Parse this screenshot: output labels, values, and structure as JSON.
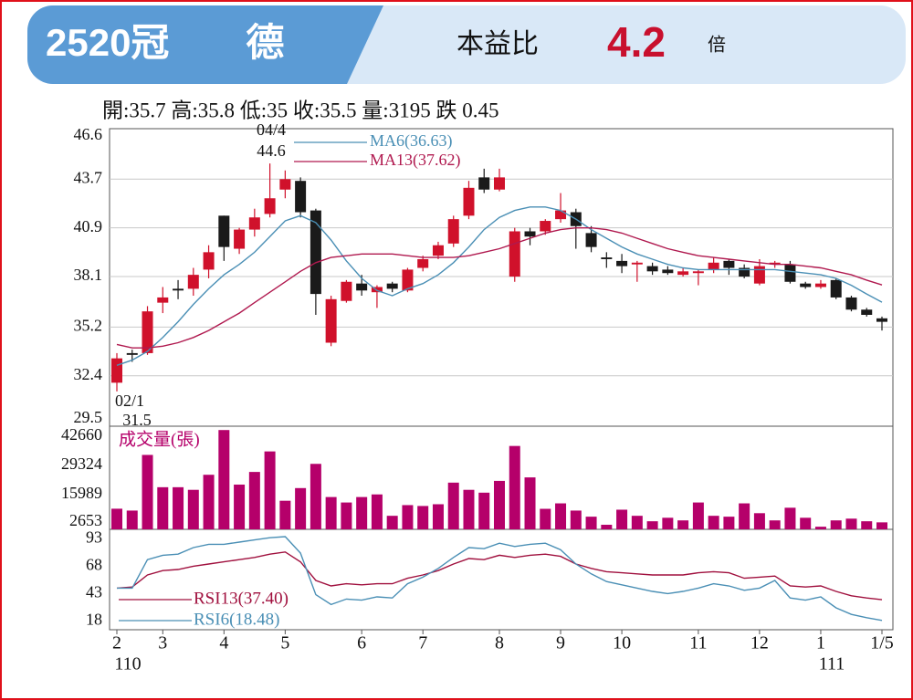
{
  "header": {
    "title": "2520冠　　德",
    "pe_label": "本益比",
    "pe_value": 4.2,
    "pe_unit": "倍",
    "info": "開:35.7 高:35.8 低:35 收:35.5 量:3195 跌 0.45"
  },
  "chart_data": [
    {
      "type": "candlestick",
      "up_color": "#d0112b",
      "down_color": "#1a1a1a",
      "open": [
        32.0,
        33.7,
        33.7,
        36.6,
        37.4,
        37.4,
        38.5,
        41.6,
        39.7,
        40.8,
        41.7,
        43.1,
        43.6,
        41.9,
        34.3,
        36.7,
        37.7,
        37.2,
        37.7,
        37.3,
        38.6,
        39.3,
        40.0,
        41.6,
        43.8,
        43.1,
        38.1,
        40.7,
        40.7,
        41.4,
        41.8,
        40.6,
        39.2,
        39.0,
        38.8,
        38.7,
        38.5,
        38.2,
        38.3,
        38.5,
        39.0,
        38.6,
        37.7,
        38.8,
        38.8,
        37.7,
        37.5,
        37.9,
        36.9,
        36.2,
        35.7
      ],
      "high": [
        33.7,
        33.9,
        36.4,
        37.5,
        37.9,
        38.6,
        39.9,
        41.6,
        40.9,
        42.0,
        44.6,
        44.2,
        43.8,
        42.0,
        37.0,
        37.9,
        38.2,
        37.6,
        37.8,
        38.6,
        39.3,
        40.1,
        41.6,
        43.6,
        44.3,
        44.3,
        40.9,
        40.9,
        41.4,
        42.9,
        42.0,
        41.0,
        39.5,
        39.4,
        39.0,
        38.9,
        38.7,
        38.6,
        38.5,
        39.2,
        39.1,
        38.8,
        39.1,
        39.0,
        39.0,
        37.8,
        37.9,
        38.0,
        37.0,
        36.3,
        35.8
      ],
      "low": [
        31.5,
        33.2,
        33.6,
        36.0,
        36.8,
        37.0,
        38.0,
        39.0,
        39.4,
        40.4,
        41.5,
        42.6,
        41.5,
        35.9,
        34.1,
        36.6,
        37.0,
        36.3,
        37.2,
        37.2,
        38.4,
        39.1,
        39.8,
        41.4,
        42.9,
        43.0,
        37.8,
        39.9,
        40.5,
        41.2,
        39.7,
        39.5,
        38.6,
        38.3,
        37.8,
        38.2,
        38.2,
        38.1,
        37.6,
        38.3,
        38.2,
        38.0,
        37.6,
        38.6,
        37.7,
        37.4,
        37.4,
        36.8,
        36.1,
        35.8,
        35.0
      ],
      "close": [
        33.4,
        33.6,
        36.1,
        36.9,
        37.3,
        38.2,
        39.5,
        39.8,
        40.8,
        41.5,
        42.6,
        43.7,
        41.8,
        37.1,
        36.8,
        37.8,
        37.3,
        37.5,
        37.4,
        38.5,
        39.1,
        39.9,
        41.4,
        43.2,
        43.1,
        43.8,
        40.7,
        40.4,
        41.3,
        41.9,
        41.0,
        39.8,
        39.1,
        38.7,
        38.9,
        38.4,
        38.3,
        38.4,
        38.4,
        38.9,
        38.6,
        38.1,
        38.7,
        38.9,
        37.8,
        37.5,
        37.7,
        36.9,
        36.2,
        35.9,
        35.5
      ],
      "series": [
        {
          "name": "MA6(36.63)",
          "color": "#4a8fb5",
          "values": [
            33.0,
            33.3,
            33.8,
            34.6,
            35.5,
            36.5,
            37.4,
            38.2,
            38.8,
            39.5,
            40.4,
            41.3,
            41.6,
            41.2,
            40.2,
            39.0,
            38.0,
            37.3,
            37.0,
            37.4,
            37.7,
            38.2,
            38.9,
            39.8,
            40.8,
            41.5,
            41.9,
            42.1,
            42.1,
            41.9,
            41.4,
            40.8,
            40.3,
            39.8,
            39.4,
            39.1,
            38.8,
            38.6,
            38.5,
            38.5,
            38.5,
            38.5,
            38.5,
            38.5,
            38.4,
            38.3,
            38.2,
            38.0,
            37.6,
            37.1,
            36.63
          ]
        },
        {
          "name": "MA13(37.62)",
          "color": "#b0194f",
          "values": [
            34.2,
            34.0,
            34.0,
            34.1,
            34.3,
            34.6,
            35.0,
            35.5,
            36.0,
            36.6,
            37.2,
            37.8,
            38.4,
            38.9,
            39.2,
            39.3,
            39.4,
            39.4,
            39.4,
            39.3,
            39.2,
            39.2,
            39.2,
            39.3,
            39.5,
            39.7,
            40.0,
            40.3,
            40.6,
            40.8,
            40.9,
            40.9,
            40.8,
            40.6,
            40.3,
            40.0,
            39.7,
            39.5,
            39.3,
            39.2,
            39.1,
            39.0,
            38.9,
            38.8,
            38.8,
            38.7,
            38.6,
            38.4,
            38.2,
            37.9,
            37.62
          ]
        }
      ],
      "annotations": [
        "04/4",
        "44.6",
        "02/1",
        "31.5"
      ],
      "ylim": [
        29.5,
        46.6
      ],
      "yticks": [
        29.5,
        32.4,
        35.2,
        38.1,
        40.9,
        43.7,
        46.6
      ],
      "grid": true
    },
    {
      "type": "bar",
      "title": "成交量(張)",
      "color": "#b5006a",
      "values": [
        9450,
        8600,
        34100,
        19300,
        19300,
        18100,
        25000,
        45500,
        20500,
        26300,
        35700,
        13100,
        18900,
        30000,
        14800,
        12300,
        14800,
        16000,
        6200,
        11100,
        10700,
        11500,
        21400,
        18100,
        16800,
        22200,
        38200,
        23800,
        9400,
        11900,
        8600,
        5800,
        2100,
        9000,
        6200,
        3700,
        5300,
        4100,
        12300,
        6200,
        5800,
        11900,
        7400,
        4100,
        9900,
        5300,
        1200,
        4100,
        4900,
        3700,
        3195
      ],
      "ylim": [
        0,
        46000
      ],
      "yticks": [
        2653,
        15989,
        29324,
        42660
      ]
    },
    {
      "type": "line",
      "categories": [
        "2",
        null,
        null,
        "3",
        null,
        null,
        null,
        "4",
        null,
        null,
        null,
        "5",
        null,
        null,
        null,
        null,
        "6",
        null,
        null,
        null,
        "7",
        null,
        null,
        null,
        null,
        "8",
        null,
        null,
        null,
        "9",
        null,
        null,
        null,
        "10",
        null,
        null,
        null,
        null,
        "11",
        null,
        null,
        null,
        "12",
        null,
        null,
        null,
        "1",
        null,
        null,
        null,
        "1/5"
      ],
      "sublabels": [
        "110",
        null,
        null,
        null,
        null,
        null,
        null,
        null,
        null,
        null,
        null,
        null,
        null,
        null,
        null,
        null,
        null,
        null,
        null,
        null,
        null,
        null,
        null,
        null,
        null,
        null,
        null,
        null,
        null,
        null,
        null,
        null,
        null,
        null,
        null,
        null,
        null,
        null,
        null,
        null,
        null,
        null,
        null,
        null,
        null,
        null,
        "111",
        null,
        null,
        null,
        null
      ],
      "series": [
        {
          "name": "RSI13(37.40)",
          "color": "#a0103e",
          "values": [
            48,
            49,
            60,
            64,
            65,
            68,
            70,
            72,
            74,
            76,
            79,
            81,
            72,
            55,
            50,
            52,
            51,
            52,
            52,
            57,
            60,
            64,
            70,
            75,
            74,
            78,
            76,
            78,
            79,
            77,
            70,
            66,
            63,
            62,
            61,
            60,
            60,
            60,
            62,
            63,
            62,
            57,
            58,
            59,
            50,
            49,
            50,
            45,
            41,
            39,
            37.4
          ]
        },
        {
          "name": "RSI6(18.48)",
          "color": "#4a8fb5",
          "values": [
            48,
            48,
            74,
            78,
            79,
            85,
            88,
            88,
            90,
            92,
            94,
            95,
            80,
            42,
            33,
            38,
            37,
            40,
            39,
            52,
            58,
            66,
            76,
            85,
            84,
            89,
            86,
            88,
            89,
            83,
            70,
            61,
            54,
            51,
            48,
            45,
            43,
            45,
            48,
            52,
            50,
            46,
            48,
            55,
            39,
            37,
            40,
            30,
            24,
            21,
            18.48
          ]
        }
      ],
      "ylim": [
        10,
        100
      ],
      "yticks": [
        18,
        43,
        68,
        93
      ]
    }
  ]
}
